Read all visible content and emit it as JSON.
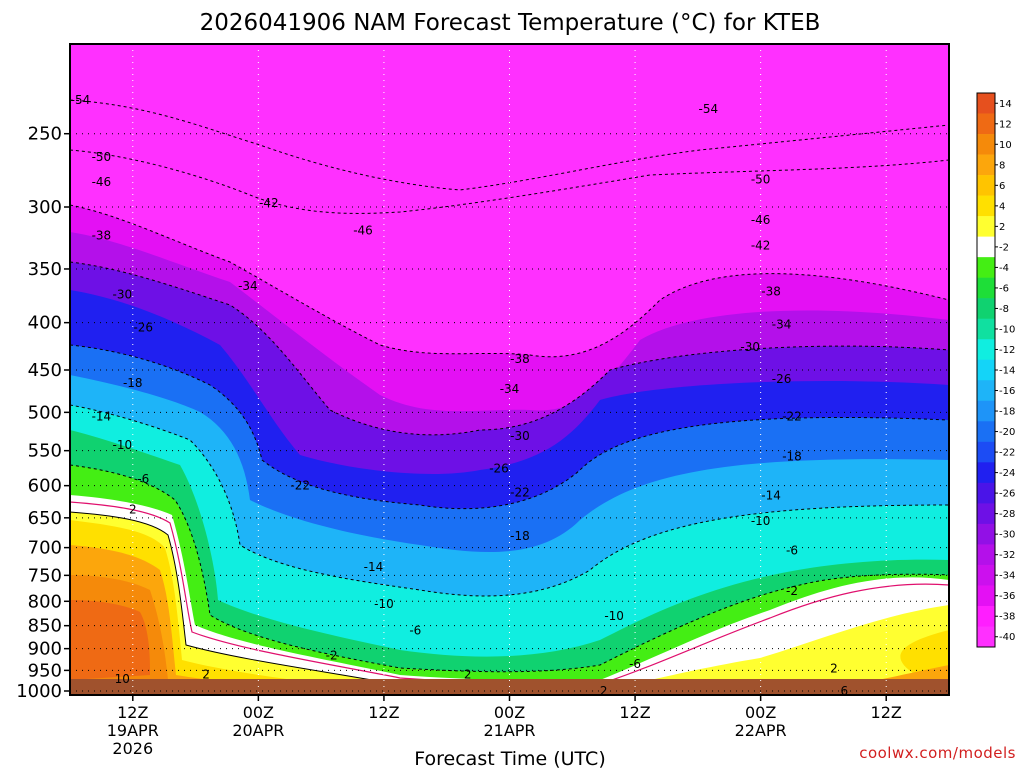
{
  "chart_data": {
    "type": "heatmap",
    "title": "2026041906 NAM Forecast Temperature (°C) for KTEB",
    "xlabel": "Forecast Time (UTC)",
    "ylabel": "",
    "credit": "coolwx.com/models",
    "y_scale": "log",
    "y_reversed": true,
    "ylim": [
      1010,
      200
    ],
    "y_ticks": [
      250,
      300,
      350,
      400,
      450,
      500,
      550,
      600,
      650,
      700,
      750,
      800,
      850,
      900,
      950,
      1000
    ],
    "y_tick_labels": [
      "250",
      "300",
      "350",
      "400",
      "450",
      "500",
      "550",
      "600",
      "650",
      "700",
      "750",
      "800",
      "850",
      "900",
      "950",
      "1000"
    ],
    "xlim": [
      6,
      90
    ],
    "x_ticks": [
      {
        "hour": 12,
        "line1": "12Z",
        "line2": "19APR",
        "line3": "2026"
      },
      {
        "hour": 24,
        "line1": "00Z",
        "line2": "20APR",
        "line3": ""
      },
      {
        "hour": 36,
        "line1": "12Z",
        "line2": "",
        "line3": ""
      },
      {
        "hour": 48,
        "line1": "00Z",
        "line2": "21APR",
        "line3": ""
      },
      {
        "hour": 60,
        "line1": "12Z",
        "line2": "",
        "line3": ""
      },
      {
        "hour": 72,
        "line1": "00Z",
        "line2": "22APR",
        "line3": ""
      },
      {
        "hour": 84,
        "line1": "12Z",
        "line2": "",
        "line3": ""
      }
    ],
    "grid": true,
    "legend": "right colorbar",
    "colorbar": {
      "labels": [
        "14",
        "12",
        "10",
        "8",
        "6",
        "4",
        "2",
        "-2",
        "-4",
        "-6",
        "-8",
        "-10",
        "-12",
        "-14",
        "-16",
        "-18",
        "-20",
        "-22",
        "-24",
        "-26",
        "-28",
        "-30",
        "-32",
        "-34",
        "-36",
        "-38",
        "-40"
      ],
      "colors": [
        "#e6501e",
        "#ef6a14",
        "#f58a0a",
        "#fca60c",
        "#ffc400",
        "#ffe000",
        "#ffff30",
        "#ffffff",
        "#44ee14",
        "#1ede38",
        "#10d270",
        "#10e0a0",
        "#10eee0",
        "#14d4f8",
        "#1eb4f8",
        "#1e94f8",
        "#1a70f4",
        "#1c4cf4",
        "#2020f0",
        "#4a14e8",
        "#6e10e6",
        "#9210e6",
        "#b410ea",
        "#cc10ee",
        "#e410f4",
        "#ff1eff",
        "#ff30ff"
      ]
    },
    "ground_color": "#a0522d",
    "freezing_line_color": "#e0106e",
    "isotherms": [
      {
        "label": "-54",
        "x": 7,
        "y": 230
      },
      {
        "label": "-54",
        "x": 67,
        "y": 235
      },
      {
        "label": "-50",
        "x": 9,
        "y": 265
      },
      {
        "label": "-50",
        "x": 72,
        "y": 280
      },
      {
        "label": "-46",
        "x": 9,
        "y": 282
      },
      {
        "label": "-46",
        "x": 34,
        "y": 318
      },
      {
        "label": "-46",
        "x": 72,
        "y": 310
      },
      {
        "label": "-42",
        "x": 25,
        "y": 297
      },
      {
        "label": "-42",
        "x": 72,
        "y": 330
      },
      {
        "label": "-38",
        "x": 9,
        "y": 322
      },
      {
        "label": "-38",
        "x": 73,
        "y": 370
      },
      {
        "label": "-38",
        "x": 49,
        "y": 438
      },
      {
        "label": "-34",
        "x": 23,
        "y": 365
      },
      {
        "label": "-34",
        "x": 74,
        "y": 402
      },
      {
        "label": "-34",
        "x": 48,
        "y": 472
      },
      {
        "label": "-30",
        "x": 11,
        "y": 373
      },
      {
        "label": "-30",
        "x": 71,
        "y": 425
      },
      {
        "label": "-30",
        "x": 49,
        "y": 530
      },
      {
        "label": "-26",
        "x": 13,
        "y": 405
      },
      {
        "label": "-26",
        "x": 74,
        "y": 460
      },
      {
        "label": "-26",
        "x": 47,
        "y": 575
      },
      {
        "label": "-22",
        "x": 28,
        "y": 600
      },
      {
        "label": "-22",
        "x": 49,
        "y": 610
      },
      {
        "label": "-22",
        "x": 75,
        "y": 505
      },
      {
        "label": "-18",
        "x": 12,
        "y": 465
      },
      {
        "label": "-18",
        "x": 49,
        "y": 680
      },
      {
        "label": "-18",
        "x": 75,
        "y": 558
      },
      {
        "label": "-14",
        "x": 9,
        "y": 505
      },
      {
        "label": "-14",
        "x": 35,
        "y": 735
      },
      {
        "label": "-14",
        "x": 73,
        "y": 615
      },
      {
        "label": "-10",
        "x": 11,
        "y": 542
      },
      {
        "label": "-10",
        "x": 36,
        "y": 805
      },
      {
        "label": "-10",
        "x": 58,
        "y": 830
      },
      {
        "label": "-10",
        "x": 72,
        "y": 655
      },
      {
        "label": "-6",
        "x": 13,
        "y": 590
      },
      {
        "label": "-6",
        "x": 39,
        "y": 860
      },
      {
        "label": "-6",
        "x": 60,
        "y": 935
      },
      {
        "label": "-6",
        "x": 75,
        "y": 705
      },
      {
        "label": "-2",
        "x": 31,
        "y": 915
      },
      {
        "label": "-2",
        "x": 75,
        "y": 780
      },
      {
        "label": "2",
        "x": 12,
        "y": 637
      },
      {
        "label": "2",
        "x": 19,
        "y": 960
      },
      {
        "label": "2",
        "x": 44,
        "y": 960
      },
      {
        "label": "2",
        "x": 57,
        "y": 1000
      },
      {
        "label": "2",
        "x": 79,
        "y": 945
      },
      {
        "label": "6",
        "x": 80,
        "y": 1000
      },
      {
        "label": "10",
        "x": 11,
        "y": 970
      }
    ]
  }
}
